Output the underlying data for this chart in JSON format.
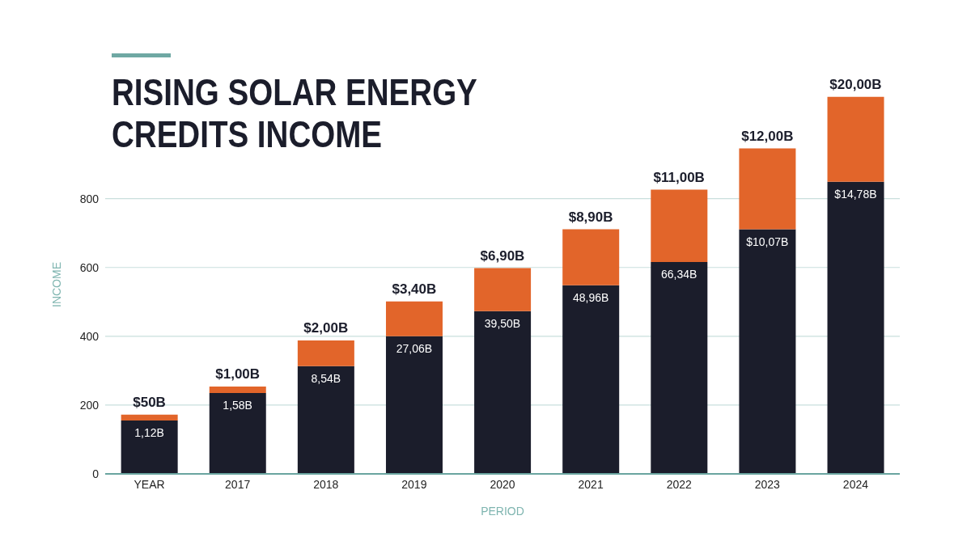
{
  "chart_data": {
    "type": "bar",
    "title": "RISING SOLAR ENERGY CREDITS INCOME",
    "xlabel": "PERIOD",
    "ylabel": "INCOME",
    "categories": [
      "YEAR",
      "2017",
      "2018",
      "2019",
      "2020",
      "2021",
      "2022",
      "2023",
      "2024"
    ],
    "stacked": true,
    "series": [
      {
        "color": "#1b1d2b",
        "values": [
          155,
          235,
          313,
          400,
          473,
          548,
          616,
          711,
          849
        ]
      },
      {
        "color": "#e2652a",
        "values": [
          17,
          19,
          75,
          101,
          125,
          163,
          210,
          235,
          247
        ]
      }
    ],
    "annotations": [
      {
        "text": "1,12B",
        "x": "YEAR",
        "y": 155
      },
      {
        "text": "1,58B",
        "x": "2017",
        "y": 235
      },
      {
        "text": "8,54B",
        "x": "2018",
        "y": 313
      },
      {
        "text": "27,06B",
        "x": "2019",
        "y": 400
      },
      {
        "text": "39,50B",
        "x": "2020",
        "y": 473
      },
      {
        "text": "48,96B",
        "x": "2021",
        "y": 548
      },
      {
        "text": "66,34B",
        "x": "2022",
        "y": 616
      },
      {
        "text": "$10,07B",
        "x": "2023",
        "y": 711
      },
      {
        "text": "$14,78B",
        "x": "2024",
        "y": 849
      },
      {
        "text": "$50B",
        "x": "YEAR",
        "y": 172
      },
      {
        "text": "$1,00B",
        "x": "2017",
        "y": 254
      },
      {
        "text": "$2,00B",
        "x": "2018",
        "y": 388
      },
      {
        "text": "$3,40B",
        "x": "2019",
        "y": 501
      },
      {
        "text": "$6,90B",
        "x": "2020",
        "y": 598
      },
      {
        "text": "$8,90B",
        "x": "2021",
        "y": 711
      },
      {
        "text": "$11,00B",
        "x": "2022",
        "y": 826
      },
      {
        "text": "$12,00B",
        "x": "2023",
        "y": 946
      },
      {
        "text": "$20,00B",
        "x": "2024",
        "y": 1096
      }
    ],
    "ylim": [
      0,
      1100
    ],
    "yticks": [
      0,
      200,
      400,
      600,
      800
    ],
    "grid": "y",
    "legend": false
  }
}
